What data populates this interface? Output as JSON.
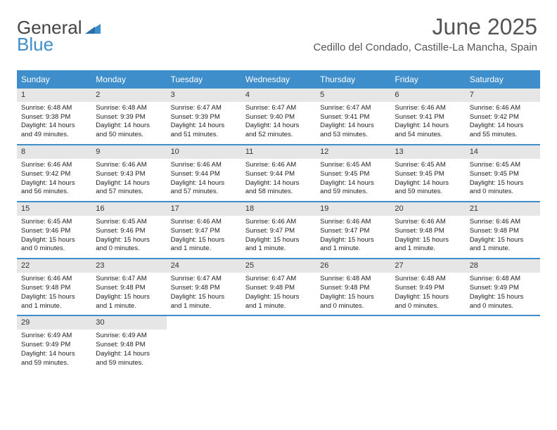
{
  "logo": {
    "text_gray": "General",
    "text_blue": "Blue"
  },
  "header": {
    "month": "June 2025",
    "location": "Cedillo del Condado, Castille-La Mancha, Spain"
  },
  "colors": {
    "header_bg": "#3e8ecb",
    "header_text": "#ffffff",
    "daynum_bg": "#e6e6e6",
    "border": "#3e8ecb",
    "text": "#333333"
  },
  "weekdays": [
    "Sunday",
    "Monday",
    "Tuesday",
    "Wednesday",
    "Thursday",
    "Friday",
    "Saturday"
  ],
  "weeks": [
    [
      {
        "n": "1",
        "sunrise": "Sunrise: 6:48 AM",
        "sunset": "Sunset: 9:38 PM",
        "day1": "Daylight: 14 hours",
        "day2": "and 49 minutes."
      },
      {
        "n": "2",
        "sunrise": "Sunrise: 6:48 AM",
        "sunset": "Sunset: 9:39 PM",
        "day1": "Daylight: 14 hours",
        "day2": "and 50 minutes."
      },
      {
        "n": "3",
        "sunrise": "Sunrise: 6:47 AM",
        "sunset": "Sunset: 9:39 PM",
        "day1": "Daylight: 14 hours",
        "day2": "and 51 minutes."
      },
      {
        "n": "4",
        "sunrise": "Sunrise: 6:47 AM",
        "sunset": "Sunset: 9:40 PM",
        "day1": "Daylight: 14 hours",
        "day2": "and 52 minutes."
      },
      {
        "n": "5",
        "sunrise": "Sunrise: 6:47 AM",
        "sunset": "Sunset: 9:41 PM",
        "day1": "Daylight: 14 hours",
        "day2": "and 53 minutes."
      },
      {
        "n": "6",
        "sunrise": "Sunrise: 6:46 AM",
        "sunset": "Sunset: 9:41 PM",
        "day1": "Daylight: 14 hours",
        "day2": "and 54 minutes."
      },
      {
        "n": "7",
        "sunrise": "Sunrise: 6:46 AM",
        "sunset": "Sunset: 9:42 PM",
        "day1": "Daylight: 14 hours",
        "day2": "and 55 minutes."
      }
    ],
    [
      {
        "n": "8",
        "sunrise": "Sunrise: 6:46 AM",
        "sunset": "Sunset: 9:42 PM",
        "day1": "Daylight: 14 hours",
        "day2": "and 56 minutes."
      },
      {
        "n": "9",
        "sunrise": "Sunrise: 6:46 AM",
        "sunset": "Sunset: 9:43 PM",
        "day1": "Daylight: 14 hours",
        "day2": "and 57 minutes."
      },
      {
        "n": "10",
        "sunrise": "Sunrise: 6:46 AM",
        "sunset": "Sunset: 9:44 PM",
        "day1": "Daylight: 14 hours",
        "day2": "and 57 minutes."
      },
      {
        "n": "11",
        "sunrise": "Sunrise: 6:46 AM",
        "sunset": "Sunset: 9:44 PM",
        "day1": "Daylight: 14 hours",
        "day2": "and 58 minutes."
      },
      {
        "n": "12",
        "sunrise": "Sunrise: 6:45 AM",
        "sunset": "Sunset: 9:45 PM",
        "day1": "Daylight: 14 hours",
        "day2": "and 59 minutes."
      },
      {
        "n": "13",
        "sunrise": "Sunrise: 6:45 AM",
        "sunset": "Sunset: 9:45 PM",
        "day1": "Daylight: 14 hours",
        "day2": "and 59 minutes."
      },
      {
        "n": "14",
        "sunrise": "Sunrise: 6:45 AM",
        "sunset": "Sunset: 9:45 PM",
        "day1": "Daylight: 15 hours",
        "day2": "and 0 minutes."
      }
    ],
    [
      {
        "n": "15",
        "sunrise": "Sunrise: 6:45 AM",
        "sunset": "Sunset: 9:46 PM",
        "day1": "Daylight: 15 hours",
        "day2": "and 0 minutes."
      },
      {
        "n": "16",
        "sunrise": "Sunrise: 6:45 AM",
        "sunset": "Sunset: 9:46 PM",
        "day1": "Daylight: 15 hours",
        "day2": "and 0 minutes."
      },
      {
        "n": "17",
        "sunrise": "Sunrise: 6:46 AM",
        "sunset": "Sunset: 9:47 PM",
        "day1": "Daylight: 15 hours",
        "day2": "and 1 minute."
      },
      {
        "n": "18",
        "sunrise": "Sunrise: 6:46 AM",
        "sunset": "Sunset: 9:47 PM",
        "day1": "Daylight: 15 hours",
        "day2": "and 1 minute."
      },
      {
        "n": "19",
        "sunrise": "Sunrise: 6:46 AM",
        "sunset": "Sunset: 9:47 PM",
        "day1": "Daylight: 15 hours",
        "day2": "and 1 minute."
      },
      {
        "n": "20",
        "sunrise": "Sunrise: 6:46 AM",
        "sunset": "Sunset: 9:48 PM",
        "day1": "Daylight: 15 hours",
        "day2": "and 1 minute."
      },
      {
        "n": "21",
        "sunrise": "Sunrise: 6:46 AM",
        "sunset": "Sunset: 9:48 PM",
        "day1": "Daylight: 15 hours",
        "day2": "and 1 minute."
      }
    ],
    [
      {
        "n": "22",
        "sunrise": "Sunrise: 6:46 AM",
        "sunset": "Sunset: 9:48 PM",
        "day1": "Daylight: 15 hours",
        "day2": "and 1 minute."
      },
      {
        "n": "23",
        "sunrise": "Sunrise: 6:47 AM",
        "sunset": "Sunset: 9:48 PM",
        "day1": "Daylight: 15 hours",
        "day2": "and 1 minute."
      },
      {
        "n": "24",
        "sunrise": "Sunrise: 6:47 AM",
        "sunset": "Sunset: 9:48 PM",
        "day1": "Daylight: 15 hours",
        "day2": "and 1 minute."
      },
      {
        "n": "25",
        "sunrise": "Sunrise: 6:47 AM",
        "sunset": "Sunset: 9:48 PM",
        "day1": "Daylight: 15 hours",
        "day2": "and 1 minute."
      },
      {
        "n": "26",
        "sunrise": "Sunrise: 6:48 AM",
        "sunset": "Sunset: 9:48 PM",
        "day1": "Daylight: 15 hours",
        "day2": "and 0 minutes."
      },
      {
        "n": "27",
        "sunrise": "Sunrise: 6:48 AM",
        "sunset": "Sunset: 9:49 PM",
        "day1": "Daylight: 15 hours",
        "day2": "and 0 minutes."
      },
      {
        "n": "28",
        "sunrise": "Sunrise: 6:48 AM",
        "sunset": "Sunset: 9:49 PM",
        "day1": "Daylight: 15 hours",
        "day2": "and 0 minutes."
      }
    ],
    [
      {
        "n": "29",
        "sunrise": "Sunrise: 6:49 AM",
        "sunset": "Sunset: 9:49 PM",
        "day1": "Daylight: 14 hours",
        "day2": "and 59 minutes."
      },
      {
        "n": "30",
        "sunrise": "Sunrise: 6:49 AM",
        "sunset": "Sunset: 9:48 PM",
        "day1": "Daylight: 14 hours",
        "day2": "and 59 minutes."
      },
      {
        "empty": true
      },
      {
        "empty": true
      },
      {
        "empty": true
      },
      {
        "empty": true
      },
      {
        "empty": true
      }
    ]
  ]
}
